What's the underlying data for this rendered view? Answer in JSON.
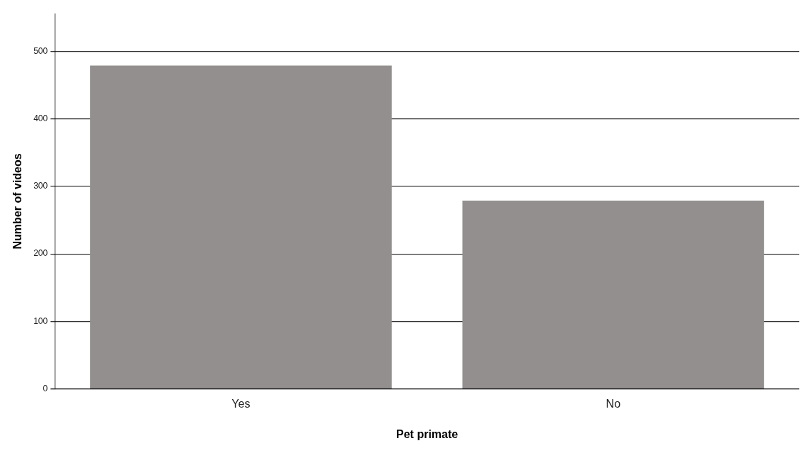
{
  "chart_data": {
    "type": "bar",
    "xlabel": "Pet primate",
    "ylabel": "Number of videos",
    "categories": [
      "Yes",
      "No"
    ],
    "values": [
      479,
      279
    ],
    "color": "#938f8e",
    "ylim": [
      0,
      556
    ],
    "yticks": [
      0,
      100,
      200,
      300,
      400,
      500
    ],
    "grid": "y",
    "legend": false
  }
}
